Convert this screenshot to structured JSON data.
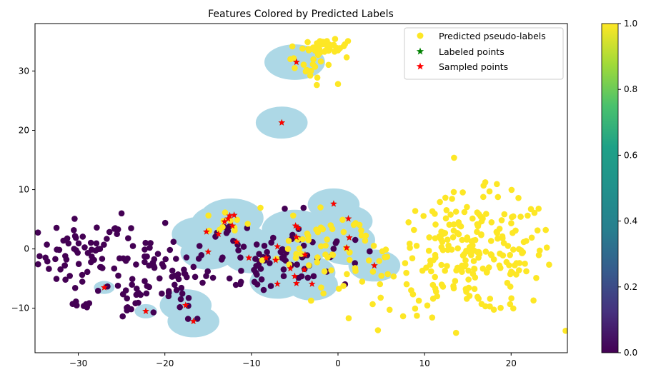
{
  "chart_data": {
    "type": "scatter",
    "title": "Features Colored by Predicted Labels",
    "xlabel": "",
    "ylabel": "",
    "xlim": [
      -35,
      26.5
    ],
    "ylim": [
      -17.5,
      38
    ],
    "xticks": [
      -30,
      -20,
      -10,
      0,
      10,
      20
    ],
    "yticks": [
      -10,
      0,
      10,
      20,
      30
    ],
    "grid": false,
    "legend_position": "top-right",
    "colormap": "viridis",
    "colorbar": {
      "range": [
        0.0,
        1.0
      ],
      "ticks": [
        "0.0",
        "0.2",
        "0.4",
        "0.6",
        "0.8",
        "1.0"
      ]
    },
    "colors": {
      "label0": "#440154",
      "label1": "#fde725",
      "labeled": "#008000",
      "sampled": "#ff0000",
      "circle": "#add8e6"
    },
    "legend": [
      {
        "name": "Predicted pseudo-labels",
        "marker": "circle",
        "color": "#fde725"
      },
      {
        "name": "Labeled points",
        "marker": "star",
        "color": "#008000"
      },
      {
        "name": "Sampled points",
        "marker": "star",
        "color": "#ff0000"
      }
    ],
    "sampled_points": [
      [
        -4.8,
        31.5
      ],
      [
        -6.5,
        21.3
      ],
      [
        -0.5,
        7.6
      ],
      [
        1.2,
        5.1
      ],
      [
        -12.5,
        5.6
      ],
      [
        -12.7,
        5.1
      ],
      [
        -12.0,
        5.7
      ],
      [
        -13.1,
        4.6
      ],
      [
        -12.2,
        3.9
      ],
      [
        -11.7,
        1.2
      ],
      [
        -15.2,
        2.9
      ],
      [
        -13.8,
        2.5
      ],
      [
        -15.0,
        -0.5
      ],
      [
        -10.3,
        -1.5
      ],
      [
        -8.3,
        -1.5
      ],
      [
        -7.0,
        0.4
      ],
      [
        -4.9,
        3.9
      ],
      [
        -4.6,
        3.5
      ],
      [
        -4.8,
        2.0
      ],
      [
        1.3,
        1.9
      ],
      [
        1.0,
        0.2
      ],
      [
        -3.8,
        -1.0
      ],
      [
        -7.2,
        -1.9
      ],
      [
        -5.5,
        -3.3
      ],
      [
        -3.9,
        -3.5
      ],
      [
        -5.0,
        -4.6
      ],
      [
        -4.8,
        -5.8
      ],
      [
        -3.0,
        -5.9
      ],
      [
        -7.0,
        -5.9
      ],
      [
        4.2,
        -2.8
      ],
      [
        -27.0,
        -6.5
      ],
      [
        -22.2,
        -10.5
      ],
      [
        -17.6,
        -9.5
      ],
      [
        -16.7,
        -12.2
      ]
    ],
    "regions": [
      [
        -5,
        31.5,
        3.5,
        3.0
      ],
      [
        -6.5,
        21.3,
        3.0,
        2.7
      ],
      [
        -0.5,
        7.5,
        3.0,
        2.7
      ],
      [
        1.0,
        4.7,
        3.0,
        2.7
      ],
      [
        -12.3,
        5.2,
        3.7,
        3.3
      ],
      [
        -13.3,
        4.2,
        3.7,
        3.3
      ],
      [
        -16.0,
        2.5,
        3.2,
        2.9
      ],
      [
        -15.0,
        -0.6,
        3.2,
        2.9
      ],
      [
        -11.5,
        1.2,
        3.5,
        3.1
      ],
      [
        -10.0,
        -1.2,
        3.2,
        2.9
      ],
      [
        -5.0,
        3.3,
        3.8,
        3.3
      ],
      [
        -4.5,
        0.5,
        3.5,
        3.1
      ],
      [
        -2.0,
        2.5,
        3.0,
        2.7
      ],
      [
        1.3,
        1.5,
        3.0,
        2.7
      ],
      [
        1.0,
        0.0,
        3.0,
        2.7
      ],
      [
        -5.5,
        -3.3,
        3.2,
        2.9
      ],
      [
        -3.5,
        -4.0,
        3.2,
        2.9
      ],
      [
        -7.0,
        -5.5,
        3.2,
        2.9
      ],
      [
        -3.0,
        -6.0,
        3.0,
        2.7
      ],
      [
        4.2,
        -2.8,
        3.0,
        2.7
      ],
      [
        -27.0,
        -6.5,
        1.2,
        1.1
      ],
      [
        -22.2,
        -10.5,
        1.3,
        1.2
      ],
      [
        -17.6,
        -9.5,
        3.0,
        2.7
      ],
      [
        -16.7,
        -12.2,
        3.0,
        2.7
      ]
    ],
    "label0_clusters": [
      [
        -29.5,
        -1.0,
        2.5,
        3.0,
        60
      ],
      [
        -22.0,
        -4.0,
        3.0,
        3.0,
        45
      ],
      [
        -19.0,
        -4.0,
        2.0,
        2.5,
        15
      ],
      [
        -29.5,
        -9.6,
        0.5,
        0.3,
        8
      ],
      [
        -25.0,
        -8.0,
        1.5,
        2.0,
        8
      ],
      [
        -21.5,
        -8.5,
        1.5,
        2.0,
        6
      ],
      [
        -9.0,
        -2.5,
        2.5,
        2.8,
        30
      ],
      [
        -13.0,
        1.5,
        2.0,
        2.5,
        15
      ],
      [
        -6.0,
        0.0,
        2.5,
        3.0,
        20
      ],
      [
        -4.0,
        -3.0,
        1.5,
        2.0,
        12
      ],
      [
        -0.5,
        0.0,
        1.5,
        1.5,
        8
      ],
      [
        -17.0,
        -10.0,
        1.5,
        2.0,
        6
      ]
    ],
    "label0_points": [
      [
        -25.0,
        6.0
      ],
      [
        -27.5,
        0.0
      ],
      [
        -24.5,
        -2.0
      ],
      [
        -19.0,
        1.2
      ],
      [
        -16.0,
        0.5
      ],
      [
        -17.8,
        -3.5
      ]
    ],
    "label1_clusters": [
      [
        -1.5,
        34.0,
        1.3,
        0.6,
        40
      ],
      [
        -2.5,
        30.5,
        1.5,
        1.3,
        12
      ],
      [
        15.5,
        -1.0,
        4.8,
        5.0,
        230
      ],
      [
        1.0,
        -2.0,
        3.5,
        4.0,
        40
      ],
      [
        -2.0,
        2.0,
        2.0,
        2.5,
        15
      ],
      [
        -13.0,
        4.5,
        2.0,
        1.2,
        12
      ],
      [
        -5.0,
        -2.0,
        1.8,
        2.2,
        12
      ]
    ],
    "label1_points": [
      [
        1.0,
        32.3
      ],
      [
        0.0,
        27.8
      ],
      [
        -5.5,
        32.0
      ],
      [
        -5.0,
        30.5
      ],
      [
        24.0,
        3.2
      ],
      [
        17.5,
        9.7
      ]
    ]
  }
}
